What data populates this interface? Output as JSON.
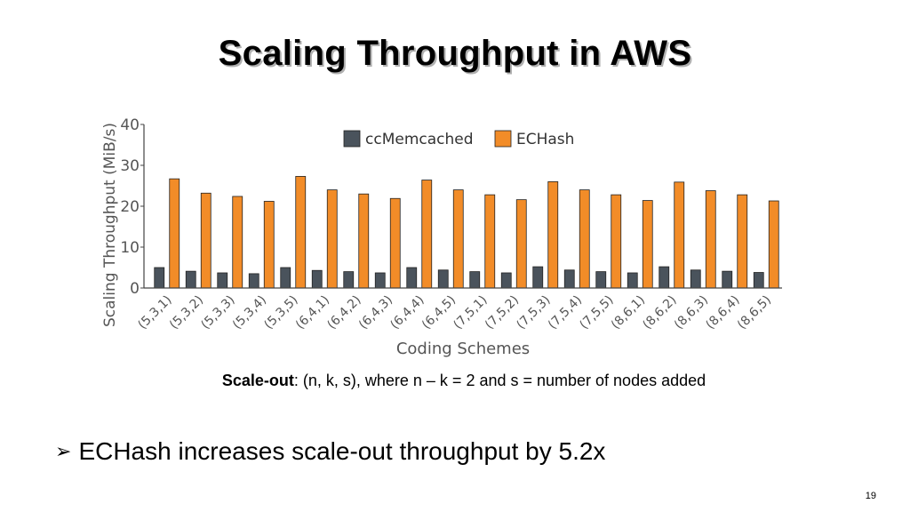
{
  "slide": {
    "title": "Scaling Throughput in AWS",
    "caption_bold": "Scale-out",
    "caption_rest": ": (n, k, s), where n – k = 2 and s = number of nodes added",
    "bullet_symbol": "➢",
    "bullet_text": "ECHash increases scale-out throughput by 5.2x",
    "page_number": "19"
  },
  "chart_data": {
    "type": "bar",
    "xlabel": "Coding Schemes",
    "ylabel": "Scaling Throughput (MiB/s)",
    "ylim": [
      0,
      40
    ],
    "yticks": [
      0,
      10,
      20,
      30,
      40
    ],
    "grid": false,
    "legend_placement": "top-center",
    "categories": [
      "(5,3,1)",
      "(5,3,2)",
      "(5,3,3)",
      "(5,3,4)",
      "(5,3,5)",
      "(6,4,1)",
      "(6,4,2)",
      "(6,4,3)",
      "(6,4,4)",
      "(6,4,5)",
      "(7,5,1)",
      "(7,5,2)",
      "(7,5,3)",
      "(7,5,4)",
      "(7,5,5)",
      "(8,6,1)",
      "(8,6,2)",
      "(8,6,3)",
      "(8,6,4)",
      "(8,6,5)"
    ],
    "series": [
      {
        "name": "ccMemcached",
        "color": "#4a535c",
        "values": [
          5.0,
          4.1,
          3.7,
          3.5,
          5.0,
          4.3,
          4.0,
          3.7,
          5.0,
          4.4,
          4.0,
          3.7,
          5.2,
          4.4,
          4.0,
          3.7,
          5.2,
          4.4,
          4.1,
          3.8
        ]
      },
      {
        "name": "ECHash",
        "color": "#f28c28",
        "values": [
          26.7,
          23.2,
          22.4,
          21.2,
          27.3,
          24.0,
          23.0,
          21.9,
          26.4,
          24.0,
          22.8,
          21.6,
          26.0,
          24.0,
          22.8,
          21.4,
          25.9,
          23.8,
          22.8,
          21.3
        ]
      }
    ]
  }
}
